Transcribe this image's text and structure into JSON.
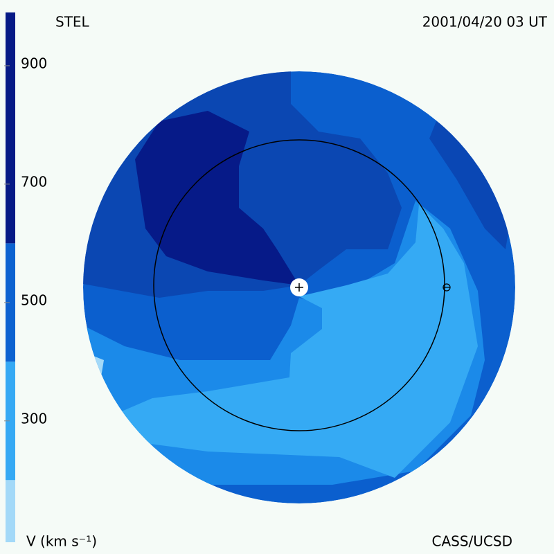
{
  "header": {
    "left": "STEL",
    "right": "2001/04/20 03 UT"
  },
  "colorbar": {
    "lim": [
      95,
      990
    ],
    "ticks": [
      300,
      500,
      700,
      900
    ],
    "levels": [
      200,
      400,
      600
    ],
    "colors": [
      "#a3d9f8",
      "#35a9f4",
      "#0c62d0",
      "#061a86"
    ],
    "label": "V (km s⁻¹)"
  },
  "footer": {
    "credit": "CASS/UCSD"
  }
}
